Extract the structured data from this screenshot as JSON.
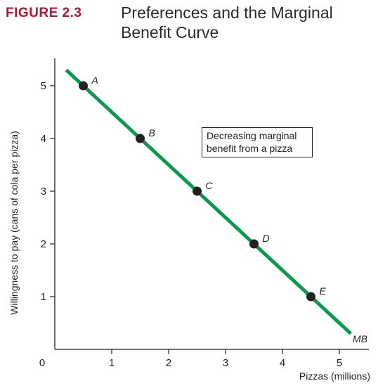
{
  "figure_label": "FIGURE 2.3",
  "figure_title": "Preferences and the Marginal Benefit Curve",
  "colors": {
    "curve": "#0a9a4c",
    "label": "#c8102e",
    "point": "#231f20"
  },
  "chart_data": {
    "type": "line",
    "title": "",
    "xlabel": "Pizzas (millions)",
    "ylabel": "Willingness to pay (cans of cola per pizza)",
    "xlim": [
      0,
      5.5
    ],
    "ylim": [
      0,
      5.5
    ],
    "xticks": [
      "0",
      "1",
      "2",
      "3",
      "4",
      "5"
    ],
    "yticks": [
      "1",
      "2",
      "3",
      "4",
      "5"
    ],
    "series": [
      {
        "name": "MB",
        "values": [
          {
            "x": 0.2,
            "y": 5.3
          },
          {
            "x": 5.2,
            "y": 0.3
          }
        ]
      }
    ],
    "points": [
      {
        "label": "A",
        "x": 0.5,
        "y": 5
      },
      {
        "label": "B",
        "x": 1.5,
        "y": 4
      },
      {
        "label": "C",
        "x": 2.5,
        "y": 3
      },
      {
        "label": "D",
        "x": 3.5,
        "y": 2
      },
      {
        "label": "E",
        "x": 4.5,
        "y": 1
      }
    ],
    "annotation": "Decreasing marginal benefit from a pizza",
    "grid": false
  }
}
